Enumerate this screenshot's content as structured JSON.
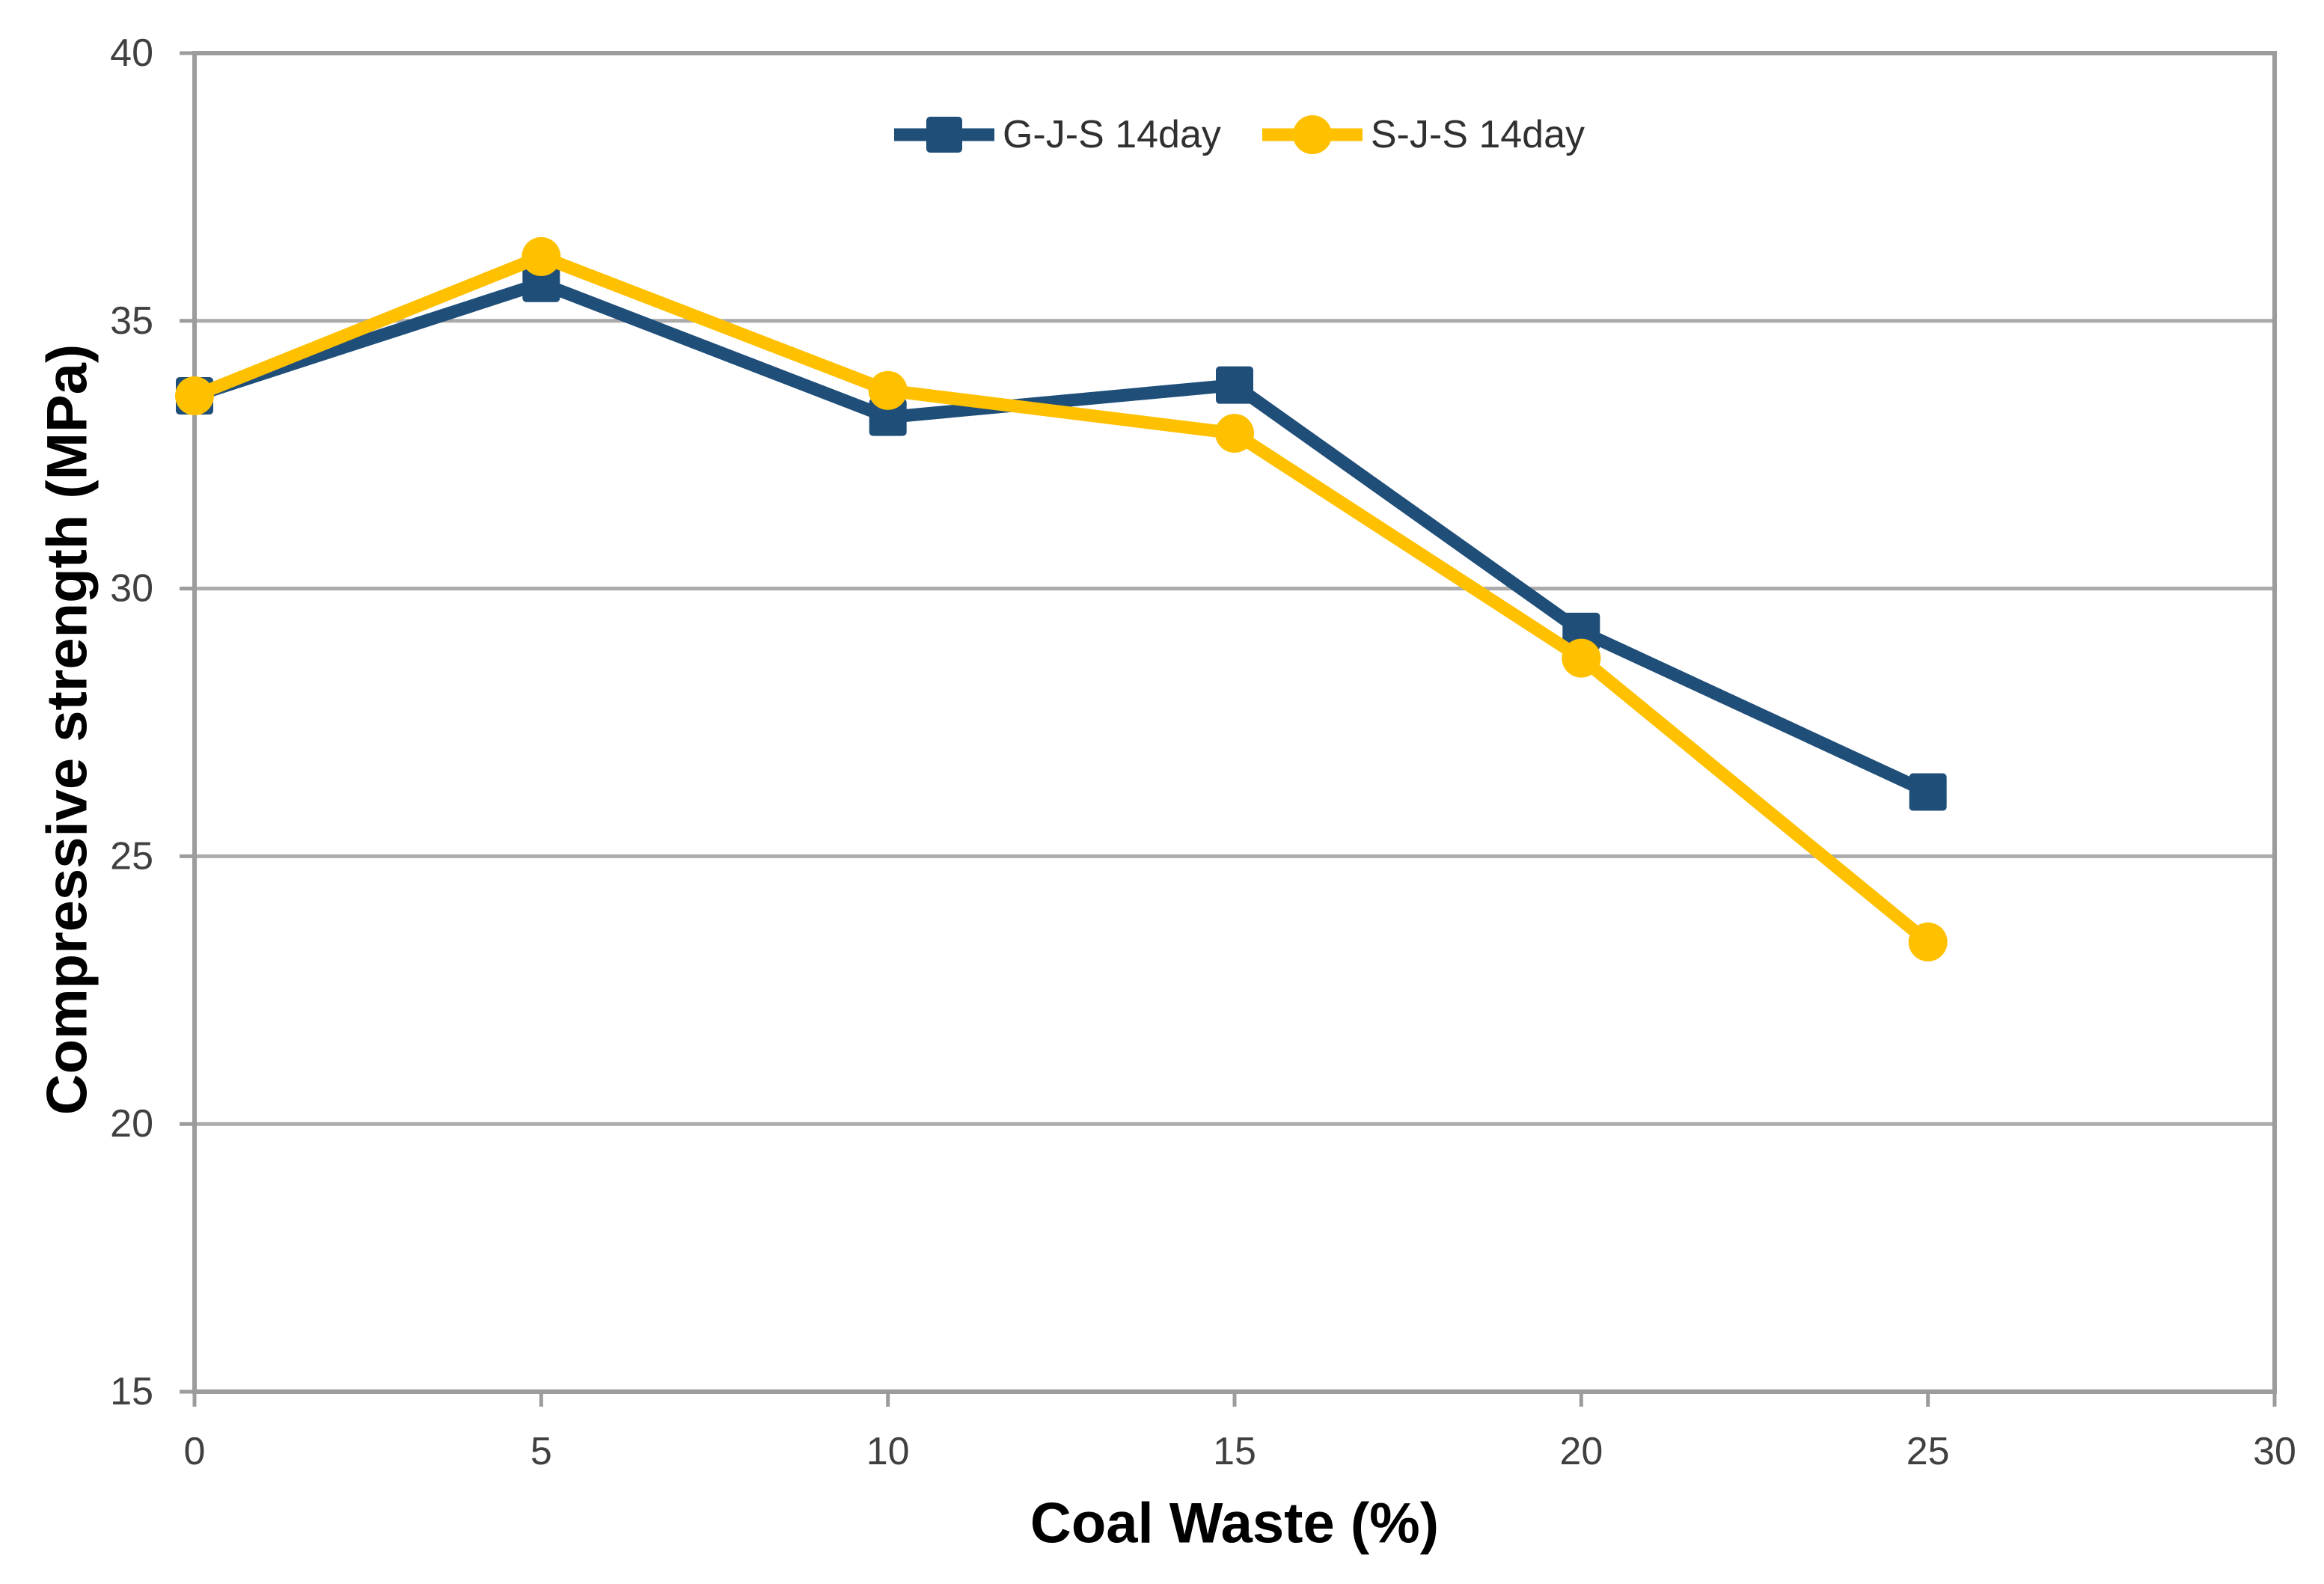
{
  "chart_data": {
    "type": "line",
    "title": "",
    "xlabel": "Coal Waste (%)",
    "ylabel": "Compressive strength (MPa)",
    "x": [
      0,
      5,
      10,
      15,
      20,
      25
    ],
    "xlim": [
      0,
      30
    ],
    "ylim": [
      15,
      40
    ],
    "x_ticks": [
      0,
      5,
      10,
      15,
      20,
      25,
      30
    ],
    "y_ticks": [
      15,
      20,
      25,
      30,
      35,
      40
    ],
    "grid": "horizontal-only",
    "legend_position": "top-center",
    "series": [
      {
        "name": "G-J-S 14day",
        "color": "#1F4E79",
        "marker": "square",
        "values": [
          33.6,
          35.7,
          33.2,
          33.8,
          29.2,
          26.2
        ]
      },
      {
        "name": "S-J-S 14day",
        "color": "#FFC000",
        "marker": "circle",
        "values": [
          33.6,
          36.2,
          33.7,
          32.9,
          28.7,
          23.4
        ]
      }
    ],
    "colors": {
      "gridline": "#ABABAB",
      "axis_border": "#9C9C9C",
      "tick_label": "#404040",
      "axis_title": "#000000",
      "background": "#FFFFFF"
    }
  }
}
